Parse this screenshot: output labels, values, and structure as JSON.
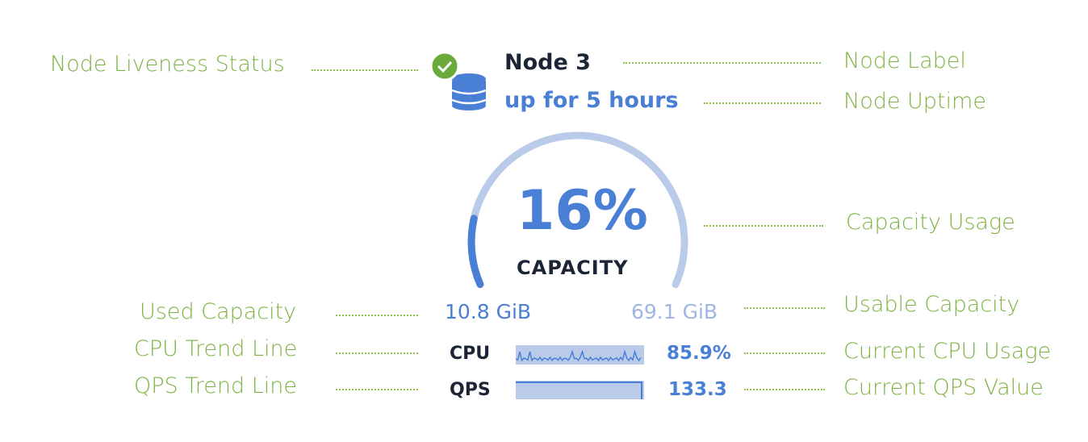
{
  "node": {
    "label": "Node 3",
    "uptime": "up for 5 hours",
    "liveness_icon": "check-circle-icon",
    "node_icon": "database-icon"
  },
  "capacity": {
    "percent": 16,
    "percent_label": "16%",
    "caption": "CAPACITY",
    "used": "10.8 GiB",
    "usable": "69.1 GiB"
  },
  "cpu": {
    "label": "CPU",
    "value": "85.9%"
  },
  "qps": {
    "label": "QPS",
    "value": "133.3"
  },
  "annotations": {
    "liveness": "Node Liveness Status",
    "label": "Node Label",
    "uptime": "Node Uptime",
    "capacity_usage": "Capacity Usage",
    "used": "Used Capacity",
    "usable": "Usable Capacity",
    "cpu_trend": "CPU Trend Line",
    "cpu_current": "Current CPU Usage",
    "qps_trend": "QPS Trend Line",
    "qps_current": "Current QPS Value"
  },
  "colors": {
    "accent": "#4a7fd6",
    "track": "#b9cbe9",
    "annotation": "#7cb342",
    "ok": "#6aaa3a"
  }
}
